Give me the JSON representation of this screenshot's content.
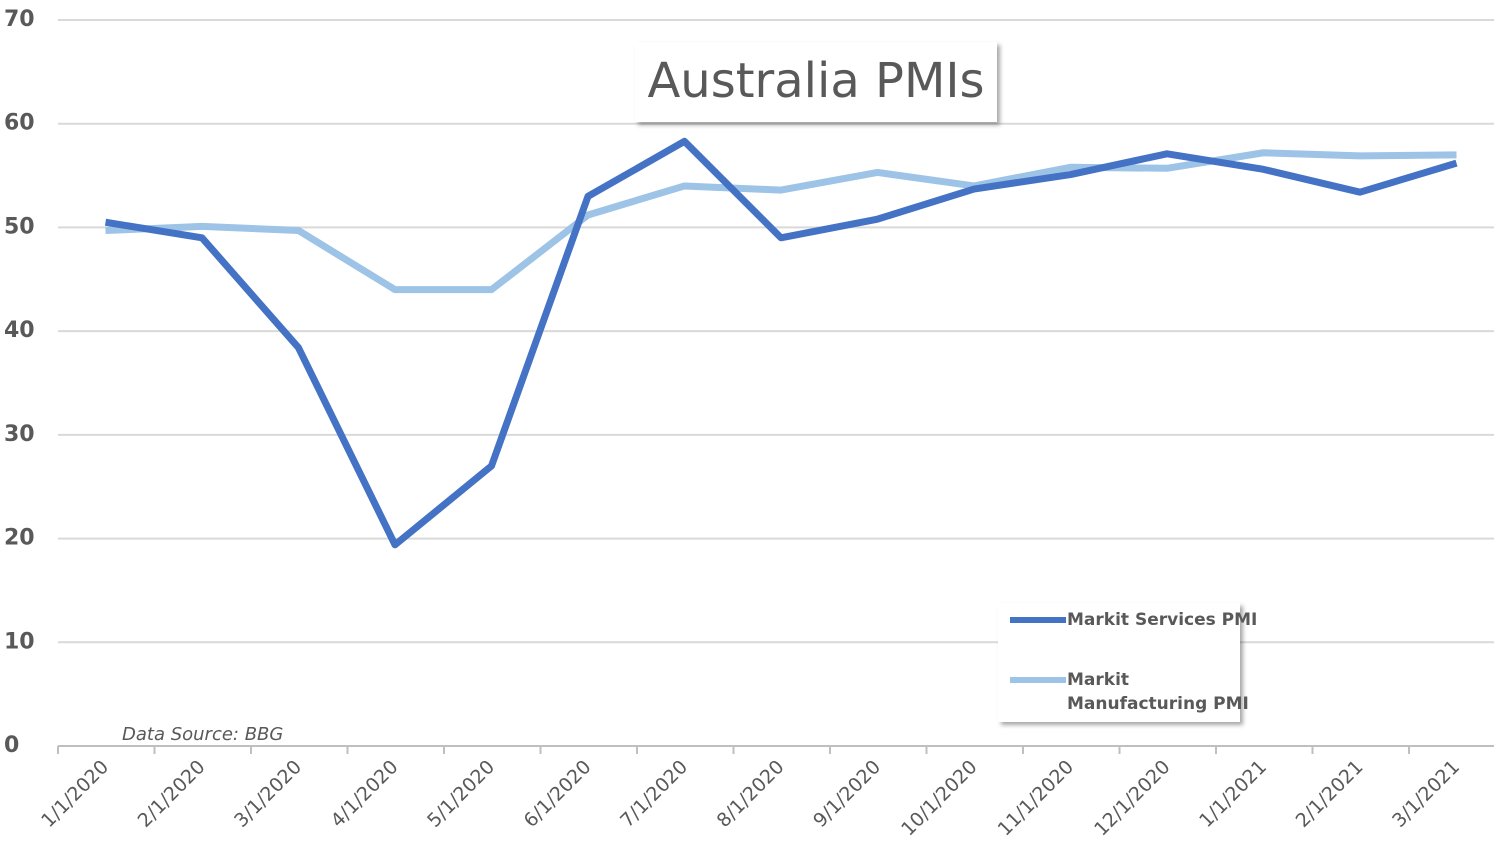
{
  "chart_data": {
    "type": "line",
    "title": "Australia PMIs",
    "annotation": "Data Source: BBG",
    "categories": [
      "1/1/2020",
      "2/1/2020",
      "3/1/2020",
      "4/1/2020",
      "5/1/2020",
      "6/1/2020",
      "7/1/2020",
      "8/1/2020",
      "9/1/2020",
      "10/1/2020",
      "11/1/2020",
      "12/1/2020",
      "1/1/2021",
      "2/1/2021",
      "3/1/2021"
    ],
    "series": [
      {
        "name": "Markit Services PMI",
        "color": "#4472c4",
        "values": [
          50.5,
          49.0,
          38.4,
          19.4,
          27.0,
          53.0,
          58.3,
          49.0,
          50.8,
          53.7,
          55.1,
          57.1,
          55.6,
          53.4,
          56.2
        ]
      },
      {
        "name": "Markit Manufacturing PMI",
        "color": "#9dc3e6",
        "values": [
          49.7,
          50.1,
          49.7,
          44.0,
          44.0,
          51.2,
          54.0,
          53.6,
          55.3,
          54.0,
          55.8,
          55.7,
          57.2,
          56.9,
          57.0
        ]
      }
    ],
    "ylim": [
      0,
      70
    ],
    "yticks": [
      0,
      10,
      20,
      30,
      40,
      50,
      60,
      70
    ],
    "grid": true,
    "legend": "lower right"
  }
}
